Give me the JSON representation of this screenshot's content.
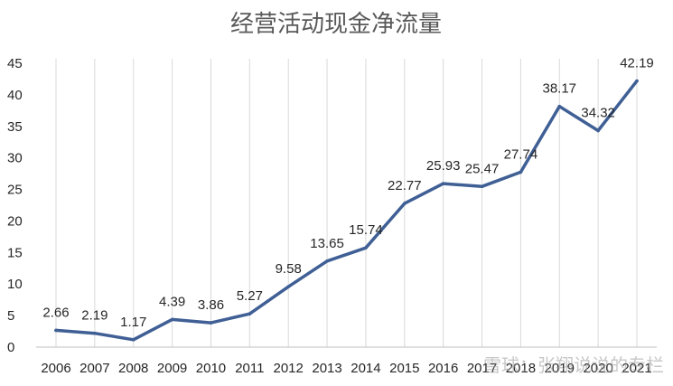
{
  "chart_data": {
    "type": "line",
    "title": "经营活动现金净流量",
    "categories": [
      "2006",
      "2007",
      "2008",
      "2009",
      "2010",
      "2011",
      "2012",
      "2013",
      "2014",
      "2015",
      "2016",
      "2017",
      "2018",
      "2019",
      "2020",
      "2021"
    ],
    "values": [
      2.66,
      2.19,
      1.17,
      4.39,
      3.86,
      5.27,
      9.58,
      13.65,
      15.74,
      22.77,
      25.93,
      25.47,
      27.74,
      38.17,
      34.32,
      42.19
    ],
    "ylim": [
      0,
      45
    ],
    "yticks": [
      0,
      5,
      10,
      15,
      20,
      25,
      30,
      35,
      40,
      45
    ],
    "xlabel": "",
    "ylabel": "",
    "grid": "vertical",
    "line_color": "#3f5f95",
    "grid_color": "#d9d9d9"
  },
  "watermark": "雪球：张翔说说的专栏"
}
